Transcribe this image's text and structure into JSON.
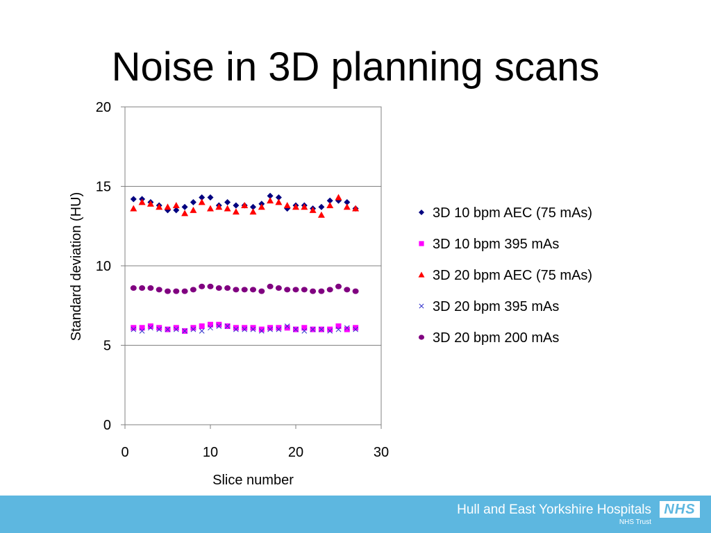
{
  "slide": {
    "title": "Noise in 3D planning scans"
  },
  "footer": {
    "organization": "Hull and East Yorkshire Hospitals",
    "subtitle": "NHS Trust",
    "logo_text": "NHS",
    "background_color": "#5db7e0"
  },
  "chart_data": {
    "type": "scatter",
    "title": "",
    "xlabel": "Slice number",
    "ylabel": "Standard deviation (HU)",
    "xlim": [
      0,
      30
    ],
    "ylim": [
      0,
      20
    ],
    "xticks": [
      0,
      10,
      20,
      30
    ],
    "yticks": [
      0,
      5,
      10,
      15,
      20
    ],
    "grid": "horizontal",
    "legend": "right",
    "x": [
      1,
      2,
      3,
      4,
      5,
      6,
      7,
      8,
      9,
      10,
      11,
      12,
      13,
      14,
      15,
      16,
      17,
      18,
      19,
      20,
      21,
      22,
      23,
      24,
      25,
      26,
      27
    ],
    "series": [
      {
        "name": "3D 10 bpm AEC (75 mAs)",
        "marker": "diamond",
        "color": "#000080",
        "values": [
          14.2,
          14.2,
          14.0,
          13.8,
          13.5,
          13.5,
          13.7,
          14.0,
          14.3,
          14.3,
          13.8,
          14.0,
          13.8,
          13.8,
          13.7,
          13.9,
          14.4,
          14.3,
          13.6,
          13.8,
          13.8,
          13.6,
          13.7,
          14.1,
          14.1,
          14.0,
          13.6
        ]
      },
      {
        "name": "3D 10 bpm 395 mAs",
        "marker": "square",
        "color": "#ff00ff",
        "values": [
          6.1,
          6.1,
          6.2,
          6.1,
          6.0,
          6.1,
          5.9,
          6.1,
          6.2,
          6.3,
          6.3,
          6.2,
          6.1,
          6.1,
          6.1,
          6.0,
          6.1,
          6.1,
          6.1,
          6.0,
          6.1,
          6.0,
          6.0,
          6.0,
          6.2,
          6.0,
          6.1
        ]
      },
      {
        "name": "3D 20 bpm AEC (75 mAs)",
        "marker": "triangle",
        "color": "#ff0000",
        "values": [
          13.6,
          14.0,
          13.9,
          13.7,
          13.7,
          13.8,
          13.3,
          13.5,
          14.0,
          13.6,
          13.7,
          13.6,
          13.4,
          13.8,
          13.4,
          13.7,
          14.1,
          14.0,
          13.8,
          13.7,
          13.7,
          13.5,
          13.2,
          13.8,
          14.3,
          13.7,
          13.6
        ]
      },
      {
        "name": "3D 20 bpm 395 mAs",
        "marker": "x",
        "color": "#3333cc",
        "values": [
          6.0,
          5.9,
          6.1,
          6.0,
          6.0,
          6.0,
          5.9,
          6.0,
          5.9,
          6.1,
          6.2,
          6.2,
          6.0,
          6.0,
          6.0,
          5.9,
          6.0,
          6.0,
          6.2,
          6.0,
          5.9,
          6.0,
          6.0,
          5.9,
          6.0,
          6.1,
          6.0
        ]
      },
      {
        "name": "3D 20 bpm 200 mAs",
        "marker": "circle",
        "color": "#800080",
        "values": [
          8.6,
          8.6,
          8.6,
          8.5,
          8.4,
          8.4,
          8.4,
          8.5,
          8.7,
          8.7,
          8.6,
          8.6,
          8.5,
          8.5,
          8.5,
          8.4,
          8.7,
          8.6,
          8.5,
          8.5,
          8.5,
          8.4,
          8.4,
          8.5,
          8.7,
          8.5,
          8.4
        ]
      }
    ]
  }
}
